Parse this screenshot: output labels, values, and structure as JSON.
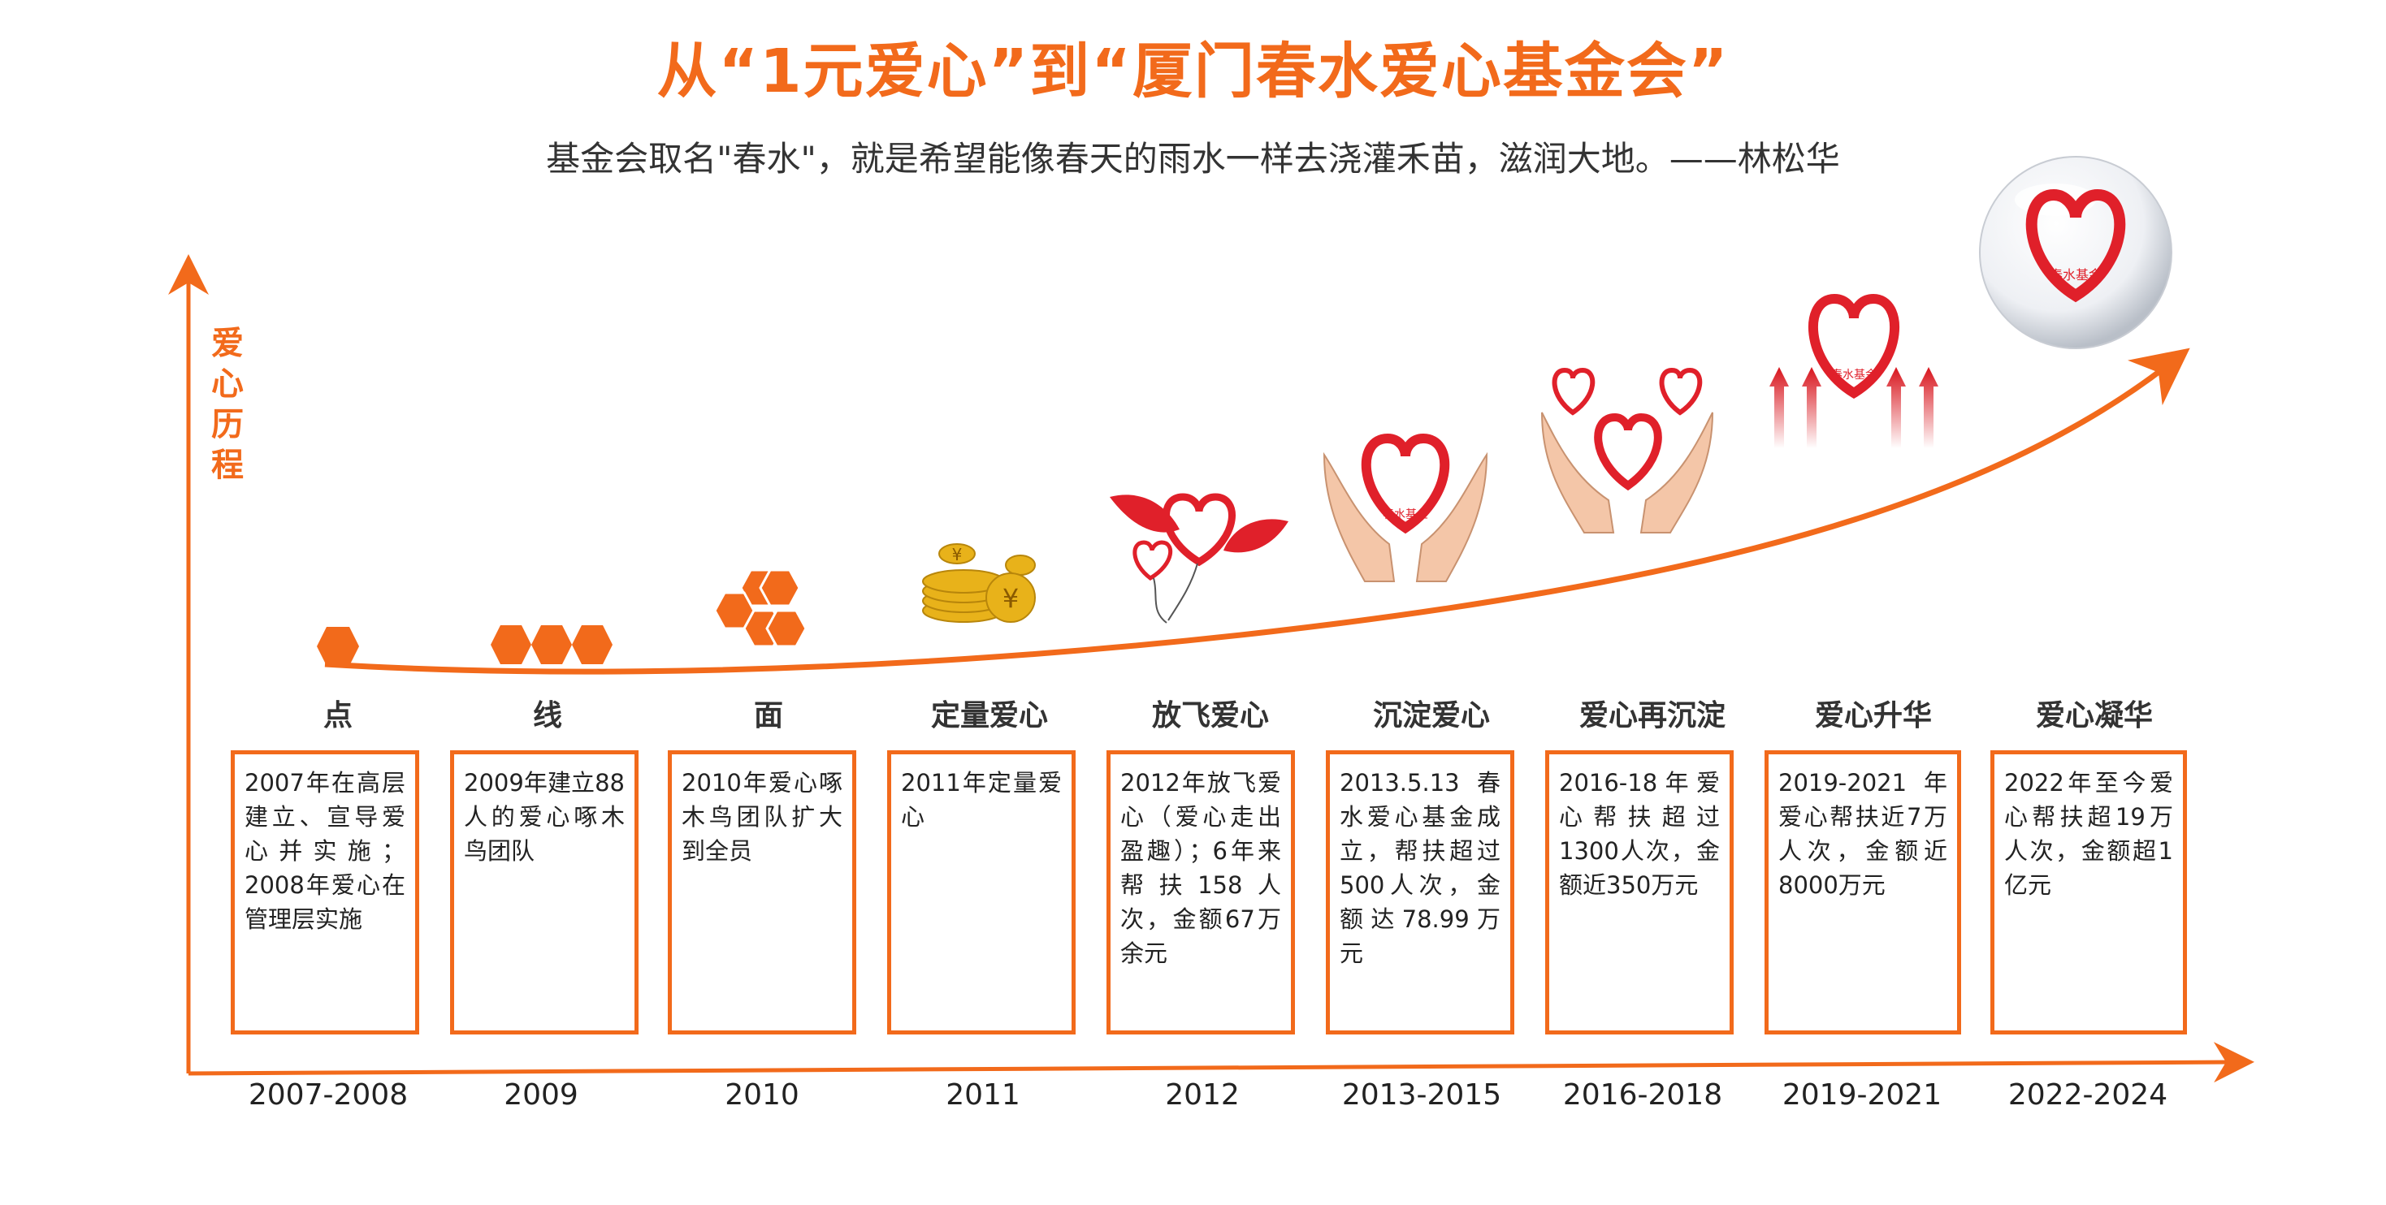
{
  "title": "从“1元爱心”到“厦门春水爱心基金会”",
  "subtitle": "基金会取名\"春水\"，就是希望能像春天的雨水一样去浇灌禾苗，滋润大地。——林松华",
  "y_axis_label": "爱\n心\n历\n程",
  "colors": {
    "accent": "#f26a1b",
    "heart": "#e0202a",
    "gold": "#e8b21a",
    "skin": "#f4c6a8"
  },
  "stages": [
    {
      "name": "点",
      "year": "2007-2008",
      "text": "2007年在高层建立、宣导爱心并实施；2008年爱心在管理层实施",
      "icon": "single-hexagon-icon"
    },
    {
      "name": "线",
      "year": "2009",
      "text": "2009年建立88人的爱心啄木鸟团队",
      "icon": "three-hexagons-icon"
    },
    {
      "name": "面",
      "year": "2010",
      "text": "2010年爱心啄木鸟团队扩大到全员",
      "icon": "honeycomb-icon"
    },
    {
      "name": "定量爱心",
      "year": "2011",
      "text": "2011年定量爱心",
      "icon": "coins-icon"
    },
    {
      "name": "放飞爱心",
      "year": "2012",
      "text": "2012年放飞爱心（爱心走出盈趣）；6年来帮扶158人次，金额67万余元",
      "icon": "winged-heart-icon"
    },
    {
      "name": "沉淀爱心",
      "year": "2013-2015",
      "text": "2013.5.13 春水爱心基金成立，帮扶超过500人次，金额达78.99万元",
      "icon": "hands-heart-icon"
    },
    {
      "name": "爱心再沉淀",
      "year": "2016-2018",
      "text": "2016-18年爱心帮扶超过1300人次，金额近350万元",
      "icon": "hands-hearts-icon"
    },
    {
      "name": "爱心升华",
      "year": "2019-2021",
      "text": "2019-2021 年爱心帮扶近7万人次，金额近8000万元",
      "icon": "rising-heart-icon"
    },
    {
      "name": "爱心凝华",
      "year": "2022-2024",
      "text": "2022年至今爱心帮扶超19万人次，金额超1亿元",
      "icon": "heart-orb-icon"
    }
  ],
  "logo_text": "春水基金"
}
